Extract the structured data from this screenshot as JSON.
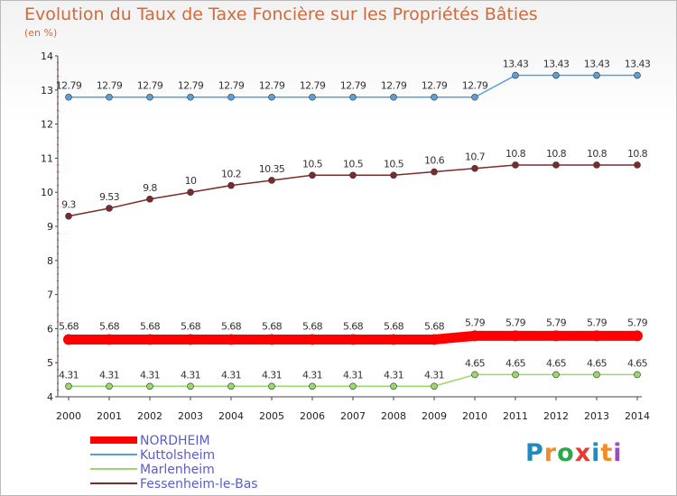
{
  "title": "Evolution du Taux de Taxe Foncière sur les Propriétés Bâties",
  "unit": "(en %)",
  "logo": {
    "text": "Proxiti",
    "colors": [
      "#1f8ac0",
      "#f28c28",
      "#2ba84a",
      "#e63b2e",
      "#1f8ac0",
      "#f28c28",
      "#9b4dbb"
    ]
  },
  "chart_data": {
    "type": "line",
    "title": "Evolution du Taux de Taxe Foncière sur les Propriétés Bâties",
    "ylabel": "(en %)",
    "xlabel": "",
    "ylim": [
      4,
      14
    ],
    "grid": false,
    "yticks": [
      "4",
      "5",
      "6",
      "7",
      "8",
      "9",
      "10",
      "11",
      "12",
      "13",
      "14"
    ],
    "categories": [
      "2000",
      "2001",
      "2002",
      "2003",
      "2004",
      "2005",
      "2006",
      "2007",
      "2008",
      "2009",
      "2010",
      "2011",
      "2012",
      "2013",
      "2014"
    ],
    "series": [
      {
        "name": "NORDHEIM",
        "color": "#ff0000",
        "values": [
          5.68,
          5.68,
          5.68,
          5.68,
          5.68,
          5.68,
          5.68,
          5.68,
          5.68,
          5.68,
          5.79,
          5.79,
          5.79,
          5.79,
          5.79
        ],
        "labels": [
          "5.68",
          "5.68",
          "5.68",
          "5.68",
          "5.68",
          "5.68",
          "5.68",
          "5.68",
          "5.68",
          "5.68",
          "5.79",
          "5.79",
          "5.79",
          "5.79",
          "5.79"
        ]
      },
      {
        "name": "Kuttolsheim",
        "color": "#5b9fd6",
        "values": [
          12.79,
          12.79,
          12.79,
          12.79,
          12.79,
          12.79,
          12.79,
          12.79,
          12.79,
          12.79,
          12.79,
          13.43,
          13.43,
          13.43,
          13.43
        ],
        "labels": [
          "12.79",
          "12.79",
          "12.79",
          "12.79",
          "12.79",
          "12.79",
          "12.79",
          "12.79",
          "12.79",
          "12.79",
          "12.79",
          "13.43",
          "13.43",
          "13.43",
          "13.43"
        ]
      },
      {
        "name": "Marlenheim",
        "color": "#99d96a",
        "values": [
          4.31,
          4.31,
          4.31,
          4.31,
          4.31,
          4.31,
          4.31,
          4.31,
          4.31,
          4.31,
          4.65,
          4.65,
          4.65,
          4.65,
          4.65
        ],
        "labels": [
          "4.31",
          "4.31",
          "4.31",
          "4.31",
          "4.31",
          "4.31",
          "4.31",
          "4.31",
          "4.31",
          "4.31",
          "4.65",
          "4.65",
          "4.65",
          "4.65",
          "4.65"
        ]
      },
      {
        "name": "Fessenheim-le-Bas",
        "color": "#7d2a2a",
        "values": [
          9.3,
          9.53,
          9.8,
          10,
          10.2,
          10.35,
          10.5,
          10.5,
          10.5,
          10.6,
          10.7,
          10.8,
          10.8,
          10.8,
          10.8
        ],
        "labels": [
          "9.3",
          "9.53",
          "9.8",
          "10",
          "10.2",
          "10.35",
          "10.5",
          "10.5",
          "10.5",
          "10.6",
          "10.7",
          "10.8",
          "10.8",
          "10.8",
          "10.8"
        ]
      }
    ],
    "legend": [
      "NORDHEIM",
      "Kuttolsheim",
      "Marlenheim",
      "Fessenheim-le-Bas"
    ]
  }
}
